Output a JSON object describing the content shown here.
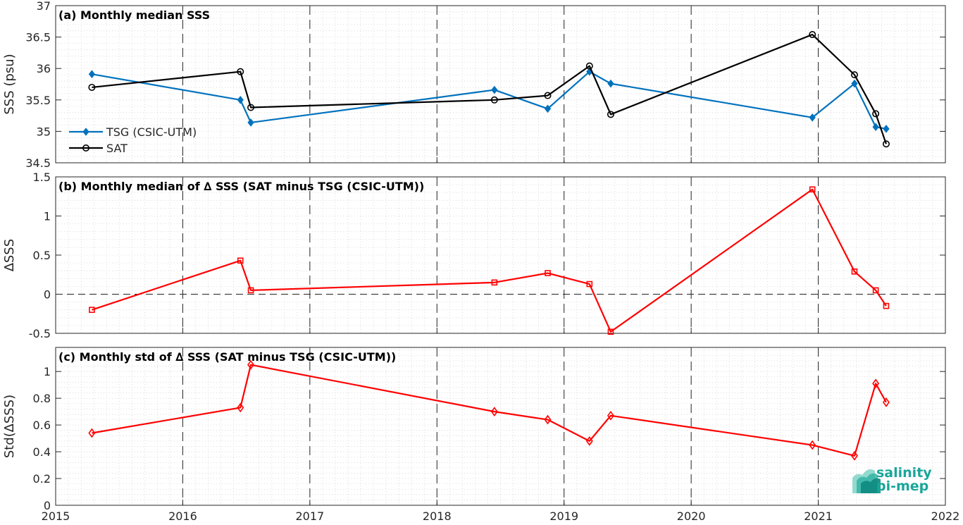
{
  "chart_data": [
    {
      "type": "line",
      "title": "(a) Monthly median SSS",
      "xlabel": "",
      "ylabel": "SSS (psu)",
      "xlim": [
        "2015-01-01",
        "2022-01-01"
      ],
      "ylim": [
        34.5,
        37
      ],
      "yticks": [
        "34.5",
        "35",
        "35.5",
        "36",
        "36.5",
        "37"
      ],
      "grid": "minor dotted, vertical dashed at years",
      "legend": "bottom-left",
      "series": [
        {
          "name": "TSG (CSIC-UTM)",
          "color": "#0072BD",
          "marker": "diamond-filled",
          "x": [
            "2015-04-15",
            "2016-06-15",
            "2016-07-15",
            "2018-06-15",
            "2018-11-15",
            "2019-03-15",
            "2019-05-15",
            "2020-12-15",
            "2021-04-15",
            "2021-06-15",
            "2021-07-15"
          ],
          "values": [
            35.91,
            35.5,
            35.14,
            35.66,
            35.36,
            35.95,
            35.76,
            35.22,
            35.76,
            35.07,
            35.04
          ]
        },
        {
          "name": "SAT",
          "color": "#000000",
          "marker": "circle-open",
          "x": [
            "2015-04-15",
            "2016-06-15",
            "2016-07-15",
            "2018-06-15",
            "2018-11-15",
            "2019-03-15",
            "2019-05-15",
            "2020-12-15",
            "2021-04-15",
            "2021-06-15",
            "2021-07-15"
          ],
          "values": [
            35.7,
            35.95,
            35.38,
            35.5,
            35.57,
            36.04,
            35.27,
            36.54,
            35.9,
            35.28,
            34.8
          ]
        }
      ]
    },
    {
      "type": "line",
      "title": "(b) Monthly median of ∆ SSS (SAT minus TSG (CSIC-UTM))",
      "xlabel": "",
      "ylabel": "∆SSS",
      "xlim": [
        "2015-01-01",
        "2022-01-01"
      ],
      "ylim": [
        -0.5,
        1.5
      ],
      "yticks": [
        "-0.5",
        "0",
        "0.5",
        "1",
        "1.5"
      ],
      "grid": "minor dotted, dashed zero line",
      "series": [
        {
          "color": "#FF0000",
          "marker": "square-open",
          "x": [
            "2015-04-15",
            "2016-06-15",
            "2016-07-15",
            "2018-06-15",
            "2018-11-15",
            "2019-03-15",
            "2019-05-15",
            "2020-12-15",
            "2021-04-15",
            "2021-06-15",
            "2021-07-15"
          ],
          "values": [
            -0.2,
            0.43,
            0.05,
            0.15,
            0.27,
            0.13,
            -0.48,
            1.34,
            0.29,
            0.05,
            -0.15
          ]
        }
      ]
    },
    {
      "type": "line",
      "title": "(c) Monthly std of ∆ SSS (SAT minus TSG (CSIC-UTM))",
      "xlabel": "",
      "ylabel": "Std(∆SSS)",
      "xlim": [
        "2015-01-01",
        "2022-01-01"
      ],
      "ylim": [
        0,
        1.18
      ],
      "yticks": [
        "0",
        "0.2",
        "0.4",
        "0.6",
        "0.8",
        "1"
      ],
      "xticks": [
        "2015",
        "2016",
        "2017",
        "2018",
        "2019",
        "2020",
        "2021",
        "2022"
      ],
      "grid": "minor dotted",
      "series": [
        {
          "color": "#FF0000",
          "marker": "diamond-open",
          "x": [
            "2015-04-15",
            "2016-06-15",
            "2016-07-15",
            "2018-06-15",
            "2018-11-15",
            "2019-03-15",
            "2019-05-15",
            "2020-12-15",
            "2021-04-15",
            "2021-06-15",
            "2021-07-15"
          ],
          "values": [
            0.54,
            0.73,
            1.05,
            0.7,
            0.64,
            0.48,
            0.67,
            0.45,
            0.37,
            0.91,
            0.77
          ]
        }
      ]
    }
  ],
  "logo": {
    "line1": "salinity",
    "line2": "pi-mep",
    "colors": {
      "text": "#1aa69a",
      "light": "#7fd3c6",
      "dark": "#0e8a80"
    }
  }
}
